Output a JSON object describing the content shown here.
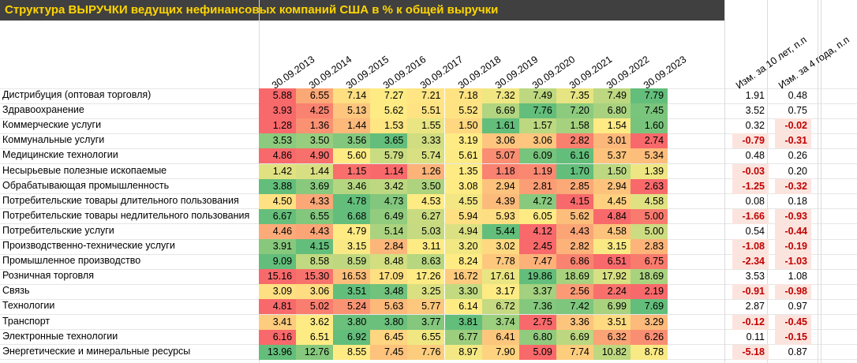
{
  "title": "Структура ВЫРУЧКИ ведущих нефинансовых компаний США в % к общей выручки",
  "chart_data": {
    "type": "heatmap",
    "title": "Структура ВЫРУЧКИ ведущих нефинансовых компаний США в % к общей выручки",
    "columns": [
      "30.09.2013",
      "30.09.2014",
      "30.09.2015",
      "30.09.2016",
      "30.09.2017",
      "30.09.2018",
      "30.09.2019",
      "30.09.2020",
      "30.09.2021",
      "30.09.2022",
      "30.09.2023"
    ],
    "change_columns": [
      "Изм. за 10 лет, п.п",
      "Изм. за 4 года, п.п"
    ],
    "rows": [
      {
        "label": "Дистрибуция (оптовая торговля)",
        "values": [
          "5.88",
          "6.55",
          "7.14",
          "7.27",
          "7.21",
          "7.18",
          "7.32",
          "7.49",
          "7.35",
          "7.49",
          "7.79"
        ],
        "changes": [
          "1.91",
          "0.48"
        ]
      },
      {
        "label": "Здравоохранение",
        "values": [
          "3.93",
          "4.25",
          "5.13",
          "5.62",
          "5.51",
          "5.52",
          "6.69",
          "7.76",
          "7.20",
          "6.80",
          "7.45"
        ],
        "changes": [
          "3.52",
          "0.75"
        ]
      },
      {
        "label": "Коммерческие услуги",
        "values": [
          "1.28",
          "1.36",
          "1.44",
          "1.53",
          "1.55",
          "1.50",
          "1.61",
          "1.57",
          "1.58",
          "1.54",
          "1.60"
        ],
        "changes": [
          "0.32",
          "-0.02"
        ]
      },
      {
        "label": "Коммунальные услуги",
        "values": [
          "3.53",
          "3.50",
          "3.56",
          "3.65",
          "3.33",
          "3.19",
          "3.06",
          "3.06",
          "2.82",
          "3.01",
          "2.74"
        ],
        "changes": [
          "-0.79",
          "-0.31"
        ]
      },
      {
        "label": "Медицинские технологии",
        "values": [
          "4.86",
          "4.90",
          "5.60",
          "5.79",
          "5.74",
          "5.61",
          "5.07",
          "6.09",
          "6.16",
          "5.37",
          "5.34"
        ],
        "changes": [
          "0.48",
          "0.26"
        ]
      },
      {
        "label": "Несырьевые полезные ископаемые",
        "values": [
          "1.42",
          "1.44",
          "1.15",
          "1.14",
          "1.26",
          "1.35",
          "1.18",
          "1.19",
          "1.70",
          "1.50",
          "1.39"
        ],
        "changes": [
          "-0.03",
          "0.20"
        ]
      },
      {
        "label": "Обрабатывающая промышленность",
        "values": [
          "3.88",
          "3.69",
          "3.46",
          "3.42",
          "3.50",
          "3.08",
          "2.94",
          "2.81",
          "2.85",
          "2.94",
          "2.63"
        ],
        "changes": [
          "-1.25",
          "-0.32"
        ]
      },
      {
        "label": "Потребительские товары длительного пользования",
        "values": [
          "4.50",
          "4.33",
          "4.78",
          "4.73",
          "4.53",
          "4.55",
          "4.39",
          "4.72",
          "4.15",
          "4.45",
          "4.58"
        ],
        "changes": [
          "0.08",
          "0.18"
        ]
      },
      {
        "label": "Потребительские товары недлительного пользования",
        "values": [
          "6.67",
          "6.55",
          "6.68",
          "6.49",
          "6.27",
          "5.94",
          "5.93",
          "6.05",
          "5.62",
          "4.84",
          "5.00"
        ],
        "changes": [
          "-1.66",
          "-0.93"
        ]
      },
      {
        "label": "Потребительские услуги",
        "values": [
          "4.46",
          "4.43",
          "4.79",
          "5.14",
          "5.03",
          "4.94",
          "5.44",
          "4.12",
          "4.43",
          "4.58",
          "5.00"
        ],
        "changes": [
          "0.54",
          "-0.44"
        ]
      },
      {
        "label": "Производственно-технические услуги",
        "values": [
          "3.91",
          "4.15",
          "3.15",
          "2.84",
          "3.11",
          "3.20",
          "3.02",
          "2.45",
          "2.82",
          "3.15",
          "2.83"
        ],
        "changes": [
          "-1.08",
          "-0.19"
        ]
      },
      {
        "label": "Промышленное производство",
        "values": [
          "9.09",
          "8.58",
          "8.59",
          "8.48",
          "8.63",
          "8.24",
          "7.78",
          "7.47",
          "6.86",
          "6.51",
          "6.75"
        ],
        "changes": [
          "-2.34",
          "-1.03"
        ]
      },
      {
        "label": "Розничная торговля",
        "values": [
          "15.16",
          "15.30",
          "16.53",
          "17.09",
          "17.26",
          "16.72",
          "17.61",
          "19.86",
          "18.69",
          "17.92",
          "18.69"
        ],
        "changes": [
          "3.53",
          "1.08"
        ]
      },
      {
        "label": "Связь",
        "values": [
          "3.09",
          "3.06",
          "3.51",
          "3.48",
          "3.25",
          "3.30",
          "3.17",
          "3.37",
          "2.56",
          "2.24",
          "2.19"
        ],
        "changes": [
          "-0.91",
          "-0.98"
        ]
      },
      {
        "label": "Технологии",
        "values": [
          "4.81",
          "5.02",
          "5.24",
          "5.63",
          "5.77",
          "6.14",
          "6.72",
          "7.36",
          "7.42",
          "6.99",
          "7.69"
        ],
        "changes": [
          "2.87",
          "0.97"
        ]
      },
      {
        "label": "Транспорт",
        "values": [
          "3.41",
          "3.62",
          "3.80",
          "3.80",
          "3.77",
          "3.81",
          "3.74",
          "2.75",
          "3.36",
          "3.51",
          "3.29"
        ],
        "changes": [
          "-0.12",
          "-0.45"
        ]
      },
      {
        "label": "Электронные технологии",
        "values": [
          "6.16",
          "6.51",
          "6.92",
          "6.45",
          "6.55",
          "6.77",
          "6.41",
          "6.80",
          "6.69",
          "6.32",
          "6.26"
        ],
        "changes": [
          "0.11",
          "-0.15"
        ]
      },
      {
        "label": "Энергетические и минеральные ресурсы",
        "values": [
          "13.96",
          "12.76",
          "8.55",
          "7.45",
          "7.76",
          "8.97",
          "7.90",
          "5.09",
          "7.74",
          "10.82",
          "8.78"
        ],
        "changes": [
          "-5.18",
          "0.87"
        ]
      }
    ],
    "colors": {
      "low": "#F8696B",
      "mid": "#FFEB84",
      "high": "#63BE7B",
      "negative_change_bg": "#FCE4DE",
      "negative_change_text": "#C00000"
    }
  }
}
